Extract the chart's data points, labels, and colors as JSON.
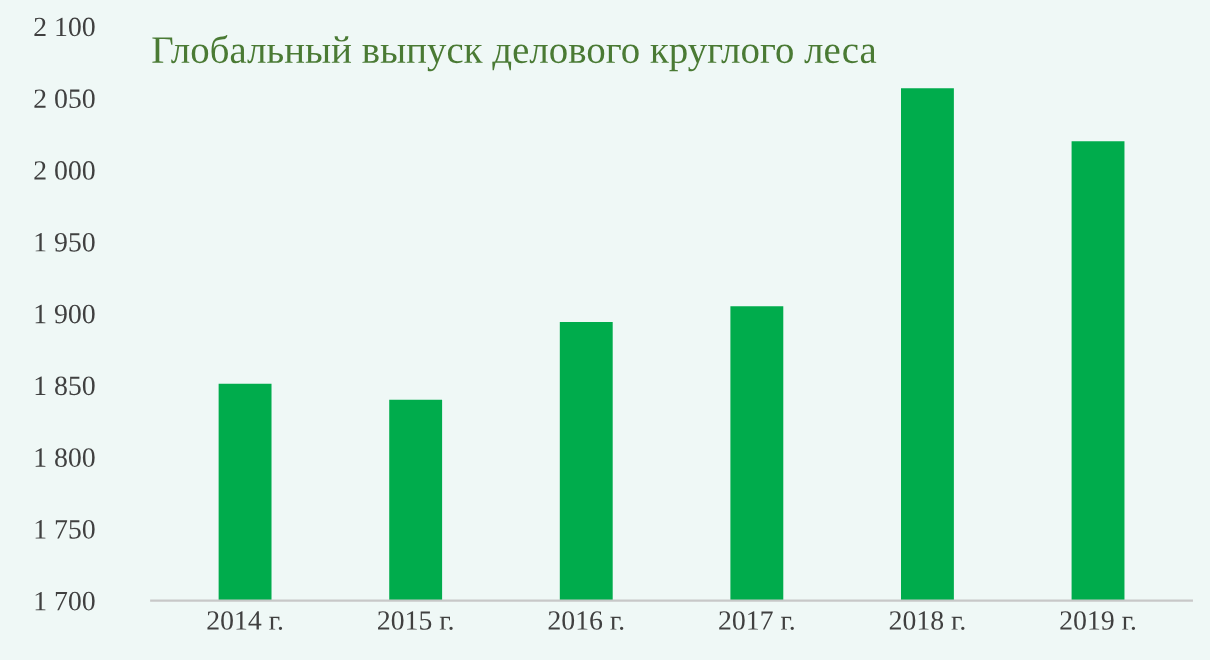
{
  "chart_data": {
    "type": "bar",
    "title": "Глобальный выпуск делового круглого леса",
    "categories": [
      "2014 г.",
      "2015 г.",
      "2016 г.",
      "2017 г.",
      "2018 г.",
      "2019 г."
    ],
    "values": [
      1851,
      1840,
      1894,
      1905,
      2057,
      2020
    ],
    "color": "#00ac4c",
    "ylim": [
      1700,
      2100
    ],
    "yticks": [
      {
        "value": 1700,
        "label": "1 700"
      },
      {
        "value": 1750,
        "label": "1 750"
      },
      {
        "value": 1800,
        "label": "1 800"
      },
      {
        "value": 1850,
        "label": "1 850"
      },
      {
        "value": 1900,
        "label": "1 900"
      },
      {
        "value": 1950,
        "label": "1 950"
      },
      {
        "value": 2000,
        "label": "2 000"
      },
      {
        "value": 2050,
        "label": "2 050"
      },
      {
        "value": 2100,
        "label": "2 100"
      }
    ],
    "grid": false
  }
}
